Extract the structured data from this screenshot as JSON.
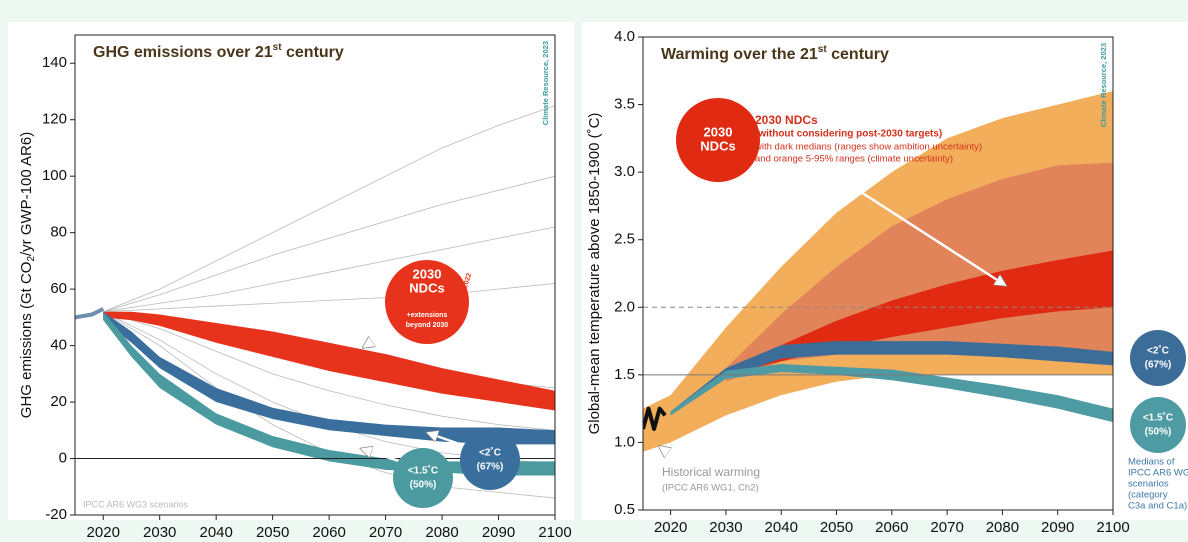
{
  "chart_data": [
    {
      "type": "band",
      "title_parts": [
        "GHG emissions over 21",
        "st",
        " century"
      ],
      "ylabel_parts": [
        "GHG emissions (Gt CO",
        "2",
        "/yr GWP-100 AR6)"
      ],
      "source": "Climate Resource, 2023",
      "xlim": [
        2015,
        2100
      ],
      "xticks": [
        2020,
        2030,
        2040,
        2050,
        2060,
        2070,
        2080,
        2090,
        2100
      ],
      "ylim": [
        -20,
        150
      ],
      "yticks": [
        -20,
        0,
        20,
        40,
        60,
        80,
        100,
        120,
        140
      ],
      "hlines": [
        {
          "value": 0,
          "color": "#222222",
          "dash": false
        }
      ],
      "scenarios": {
        "label": "IPCC AR6 WG3 scenarios",
        "color": "#b9b9b9",
        "x": [
          2020,
          2030,
          2040,
          2050,
          2060,
          2070,
          2080,
          2090,
          2100
        ],
        "lines": [
          [
            52,
            60,
            70,
            80,
            90,
            100,
            110,
            118,
            125
          ],
          [
            52,
            58,
            65,
            72,
            78,
            84,
            90,
            95,
            100
          ],
          [
            52,
            55,
            58,
            62,
            66,
            70,
            74,
            78,
            82
          ],
          [
            52,
            53,
            54,
            55,
            56,
            57,
            58,
            60,
            62
          ],
          [
            52,
            50,
            46,
            42,
            38,
            34,
            30,
            27,
            25
          ],
          [
            52,
            46,
            38,
            30,
            24,
            19,
            15,
            12,
            10
          ],
          [
            52,
            42,
            30,
            20,
            12,
            6,
            2,
            0,
            -2
          ],
          [
            52,
            40,
            25,
            12,
            2,
            -5,
            -10,
            -12,
            -14
          ]
        ]
      },
      "lines": [
        {
          "color": "#6d8fae",
          "x": [
            2015,
            2018,
            2020
          ],
          "values": [
            50,
            51,
            53
          ]
        }
      ],
      "series": [
        {
          "bubble": [
            "2030",
            "NDCs",
            "+extensions",
            "beyond 2030"
          ],
          "note": "As of Dec 2022",
          "color": "#e8331c",
          "x": [
            2020,
            2025,
            2030,
            2040,
            2050,
            2060,
            2070,
            2080,
            2090,
            2100
          ],
          "lower": [
            50,
            49,
            47,
            41,
            36,
            31,
            27,
            23,
            20,
            17
          ],
          "upper": [
            52,
            52,
            51,
            48,
            45,
            41,
            37,
            32,
            28,
            24
          ]
        },
        {
          "bubble": [
            "<2˚C",
            "(67%)"
          ],
          "color": "#3a6e9c",
          "x": [
            2020,
            2025,
            2030,
            2040,
            2050,
            2060,
            2070,
            2080,
            2090,
            2100
          ],
          "lower": [
            49,
            41,
            32,
            20,
            14,
            10,
            8,
            6,
            5,
            5
          ],
          "upper": [
            52,
            45,
            36,
            25,
            18,
            14,
            12,
            11,
            11,
            10
          ]
        },
        {
          "bubble": [
            "<1.5˚C",
            "(50%)"
          ],
          "color": "#4a9aa0",
          "x": [
            2020,
            2025,
            2030,
            2040,
            2050,
            2060,
            2070,
            2080,
            2090,
            2100
          ],
          "lower": [
            49,
            36,
            25,
            12,
            4,
            -1,
            -4,
            -5,
            -6,
            -6
          ],
          "upper": [
            52,
            40,
            30,
            16,
            8,
            3,
            0,
            -1,
            -1,
            -1
          ]
        }
      ],
      "annotations": []
    },
    {
      "type": "band",
      "title_parts": [
        "Warming over the 21",
        "st",
        " century"
      ],
      "ylabel_parts": [
        "Global-mean temperature above 1850-1900 (˚C)"
      ],
      "source": "Climate Resource, 2023",
      "xlim": [
        2015,
        2100
      ],
      "xticks": [
        2020,
        2030,
        2040,
        2050,
        2060,
        2070,
        2080,
        2090,
        2100
      ],
      "ylim": [
        0.5,
        4.0
      ],
      "yticks": [
        0.5,
        {
          "value": 1,
          "label": "1.0"
        },
        1.5,
        {
          "value": 2,
          "label": "2.0"
        },
        2.5,
        {
          "value": 3,
          "label": "3.0"
        },
        3.5,
        {
          "value": 4,
          "label": "4.0"
        }
      ],
      "hlines": [
        {
          "value": 2,
          "color": "#888888",
          "dash": true
        },
        {
          "value": 1.5,
          "color": "#777777",
          "dash": false
        }
      ],
      "lines": [
        {
          "color": "#111111",
          "x": [
            2015,
            2016,
            2017,
            2018,
            2019
          ],
          "values": [
            1.1,
            1.25,
            1.1,
            1.25,
            1.2
          ]
        }
      ],
      "series": [
        {
          "color": "#f3ae5c",
          "x": [
            2015,
            2020,
            2030,
            2040,
            2050,
            2060,
            2070,
            2080,
            2090,
            2100
          ],
          "lower": [
            0.93,
            1.0,
            1.2,
            1.35,
            1.45,
            1.5,
            1.5,
            1.5,
            1.5,
            1.5
          ],
          "upper": [
            1.25,
            1.35,
            1.85,
            2.3,
            2.7,
            3.0,
            3.25,
            3.4,
            3.5,
            3.6
          ]
        },
        {
          "color": "#e2845a",
          "x": [
            2015,
            2020,
            2030,
            2040,
            2050,
            2060,
            2070,
            2080,
            2090,
            2100
          ],
          "lower": [
            null,
            null,
            1.45,
            1.6,
            1.65,
            1.65,
            1.65,
            1.65,
            1.62,
            1.6
          ],
          "upper": [
            null,
            null,
            1.55,
            1.95,
            2.3,
            2.6,
            2.8,
            2.95,
            3.05,
            3.07
          ]
        },
        {
          "bubble": [
            "2030",
            "NDCs"
          ],
          "color": "#e02a12",
          "x": [
            2015,
            2020,
            2030,
            2040,
            2050,
            2060,
            2070,
            2080,
            2090,
            2100
          ],
          "lower": [
            null,
            null,
            1.5,
            1.6,
            1.7,
            1.78,
            1.85,
            1.92,
            1.97,
            2.0
          ],
          "upper": [
            null,
            null,
            1.52,
            1.72,
            1.9,
            2.05,
            2.17,
            2.27,
            2.35,
            2.42
          ]
        },
        {
          "bubble": [
            "<2˚C",
            "(67%)"
          ],
          "color": "#3c6d99",
          "x": [
            2015,
            2020,
            2030,
            2040,
            2050,
            2060,
            2070,
            2080,
            2090,
            2100
          ],
          "lower": [
            null,
            1.2,
            1.48,
            1.62,
            1.65,
            1.65,
            1.65,
            1.63,
            1.6,
            1.57
          ],
          "upper": [
            null,
            1.23,
            1.55,
            1.72,
            1.75,
            1.75,
            1.75,
            1.73,
            1.71,
            1.67
          ]
        },
        {
          "bubble": [
            "<1.5˚C",
            "(50%)"
          ],
          "color": "#4f9ba3",
          "x": [
            2015,
            2020,
            2030,
            2040,
            2050,
            2060,
            2070,
            2080,
            2090,
            2100
          ],
          "lower": [
            null,
            1.2,
            1.47,
            1.52,
            1.5,
            1.46,
            1.4,
            1.33,
            1.25,
            1.15
          ],
          "upper": [
            null,
            1.23,
            1.53,
            1.58,
            1.56,
            1.54,
            1.48,
            1.42,
            1.35,
            1.25
          ]
        }
      ],
      "annotations": [
        "2030 NDCs",
        "(without considering post-2030 targets)",
        "with dark medians (ranges show ambition uncertainty)",
        "and orange 5-95% ranges (climate uncertainty)",
        "Historical warming",
        "(IPCC AR6 WG1, Ch2)",
        "Medians of",
        "IPCC AR6 WG3",
        "scenarios",
        "(category",
        "C3a and C1a)"
      ]
    }
  ]
}
